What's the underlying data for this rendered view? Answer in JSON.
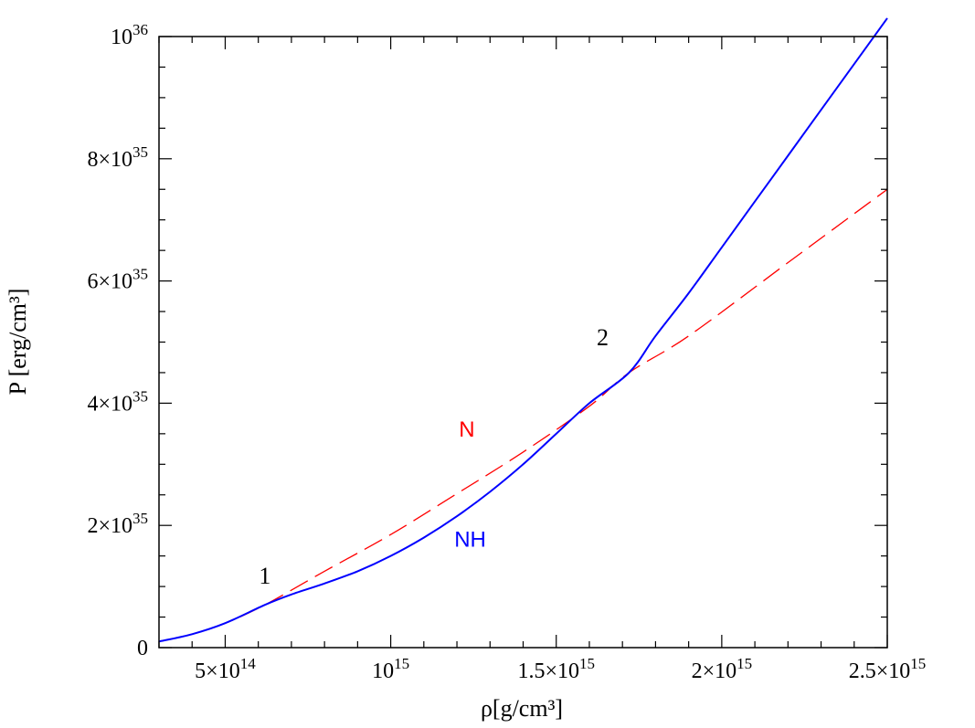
{
  "chart_data": {
    "type": "line",
    "title": "",
    "xlabel": "ρ[g/cm³]",
    "ylabel": "P [erg/cm³]",
    "xlim": [
      300000000000000.0,
      2500000000000000.0
    ],
    "ylim": [
      0,
      1e+36
    ],
    "x_ticks": [
      {
        "value": 500000000000000.0,
        "mant": "5×10",
        "exp": "14"
      },
      {
        "value": 1000000000000000.0,
        "mant": "10",
        "exp": "15"
      },
      {
        "value": 1500000000000000.0,
        "mant": "1.5×10",
        "exp": "15"
      },
      {
        "value": 2000000000000000.0,
        "mant": "2×10",
        "exp": "15"
      },
      {
        "value": 2500000000000000.0,
        "mant": "2.5×10",
        "exp": "15"
      }
    ],
    "y_ticks": [
      {
        "value": 0,
        "mant": "0",
        "exp": ""
      },
      {
        "value": 2e+35,
        "mant": "2×10",
        "exp": "35"
      },
      {
        "value": 4e+35,
        "mant": "4×10",
        "exp": "35"
      },
      {
        "value": 6e+35,
        "mant": "6×10",
        "exp": "35"
      },
      {
        "value": 8e+35,
        "mant": "8×10",
        "exp": "35"
      },
      {
        "value": 1e+36,
        "mant": "10",
        "exp": "36"
      }
    ],
    "series": [
      {
        "name": "N",
        "color": "#ff0000",
        "style": "dashed",
        "x": [
          300000000000000.0,
          400000000000000.0,
          500000000000000.0,
          620000000000000.0,
          800000000000000.0,
          1000000000000000.0,
          1200000000000000.0,
          1400000000000000.0,
          1600000000000000.0,
          1720000000000000.0,
          1900000000000000.0,
          2200000000000000.0,
          2500000000000000.0
        ],
        "y": [
          1e+34,
          2.2e+34,
          4e+34,
          7e+34,
          1.25e+35,
          1.85e+35,
          2.52e+35,
          3.2e+35,
          3.95e+35,
          4.5e+35,
          5.1e+35,
          6.3e+35,
          7.5e+35
        ]
      },
      {
        "name": "NH",
        "color": "#0000ff",
        "style": "solid",
        "x": [
          300000000000000.0,
          400000000000000.0,
          500000000000000.0,
          620000000000000.0,
          700000000000000.0,
          800000000000000.0,
          900000000000000.0,
          1000000000000000.0,
          1100000000000000.0,
          1200000000000000.0,
          1300000000000000.0,
          1400000000000000.0,
          1500000000000000.0,
          1600000000000000.0,
          1720000000000000.0,
          1800000000000000.0,
          1900000000000000.0,
          2000000000000000.0,
          2100000000000000.0,
          2200000000000000.0,
          2300000000000000.0,
          2400000000000000.0,
          2500000000000000.0
        ],
        "y": [
          1e+34,
          2.2e+34,
          4e+34,
          7e+34,
          8.7e+34,
          1.05e+35,
          1.25e+35,
          1.5e+35,
          1.8e+35,
          2.15e+35,
          2.55e+35,
          3e+35,
          3.5e+35,
          4e+35,
          4.5e+35,
          5.1e+35,
          5.8e+35,
          6.55e+35,
          7.3e+35,
          8.05e+35,
          8.8e+35,
          9.55e+35,
          1.03e+36
        ]
      }
    ],
    "annotations": [
      {
        "text": "1",
        "x": 620000000000000.0,
        "y": 1.05e+35
      },
      {
        "text": "2",
        "x": 1640000000000000.0,
        "y": 4.95e+35
      }
    ],
    "series_labels": [
      {
        "text": "N",
        "color": "#ff0000",
        "x": 1230000000000000.0,
        "y": 3.45e+35
      },
      {
        "text": "NH",
        "color": "#0000ff",
        "x": 1240000000000000.0,
        "y": 1.65e+35
      }
    ],
    "grid": false,
    "legend": "none"
  }
}
